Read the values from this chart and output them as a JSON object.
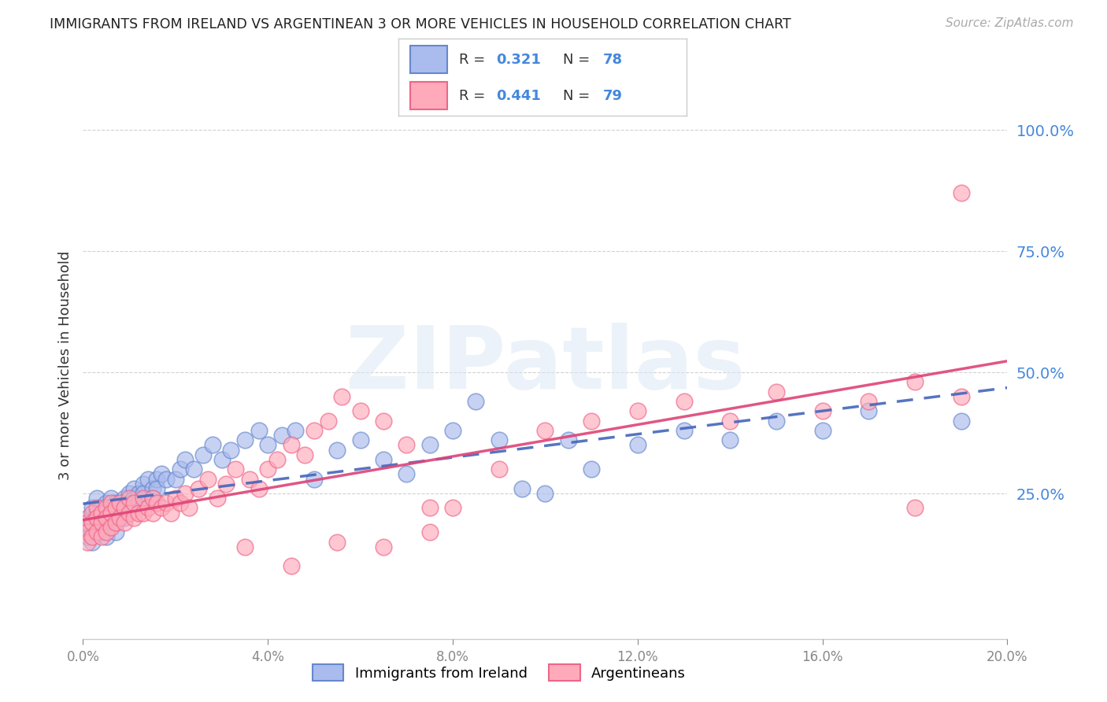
{
  "title": "IMMIGRANTS FROM IRELAND VS ARGENTINEAN 3 OR MORE VEHICLES IN HOUSEHOLD CORRELATION CHART",
  "source": "Source: ZipAtlas.com",
  "ylabel": "3 or more Vehicles in Household",
  "xlim": [
    0.0,
    0.2
  ],
  "ylim": [
    -0.05,
    1.08
  ],
  "blue_scatter_color": "#aabbee",
  "pink_scatter_color": "#ffaabb",
  "blue_edge_color": "#6688cc",
  "pink_edge_color": "#ee6688",
  "blue_line_color": "#4466bb",
  "pink_line_color": "#dd4477",
  "ytick_label_color": "#4488dd",
  "xtick_label_color": "#888888",
  "legend_entries": [
    {
      "label": "Immigrants from Ireland",
      "R": "0.321",
      "N": "78"
    },
    {
      "label": "Argentineans",
      "R": "0.441",
      "N": "79"
    }
  ],
  "watermark_text": "ZIPatlas",
  "ireland_x": [
    0.001,
    0.001,
    0.001,
    0.002,
    0.002,
    0.002,
    0.002,
    0.003,
    0.003,
    0.003,
    0.003,
    0.004,
    0.004,
    0.004,
    0.005,
    0.005,
    0.005,
    0.005,
    0.006,
    0.006,
    0.006,
    0.007,
    0.007,
    0.007,
    0.007,
    0.008,
    0.008,
    0.009,
    0.009,
    0.009,
    0.01,
    0.01,
    0.011,
    0.011,
    0.012,
    0.012,
    0.013,
    0.013,
    0.014,
    0.015,
    0.015,
    0.016,
    0.016,
    0.017,
    0.018,
    0.02,
    0.021,
    0.022,
    0.024,
    0.026,
    0.028,
    0.03,
    0.032,
    0.035,
    0.038,
    0.04,
    0.043,
    0.046,
    0.05,
    0.055,
    0.06,
    0.065,
    0.07,
    0.075,
    0.08,
    0.09,
    0.1,
    0.11,
    0.12,
    0.13,
    0.14,
    0.15,
    0.16,
    0.17,
    0.19,
    0.085,
    0.095,
    0.105
  ],
  "ireland_y": [
    0.2,
    0.18,
    0.16,
    0.22,
    0.19,
    0.17,
    0.15,
    0.21,
    0.24,
    0.2,
    0.18,
    0.22,
    0.2,
    0.17,
    0.23,
    0.21,
    0.19,
    0.16,
    0.24,
    0.22,
    0.2,
    0.23,
    0.21,
    0.19,
    0.17,
    0.22,
    0.2,
    0.24,
    0.22,
    0.2,
    0.25,
    0.23,
    0.26,
    0.24,
    0.25,
    0.23,
    0.27,
    0.25,
    0.28,
    0.26,
    0.24,
    0.28,
    0.26,
    0.29,
    0.28,
    0.28,
    0.3,
    0.32,
    0.3,
    0.33,
    0.35,
    0.32,
    0.34,
    0.36,
    0.38,
    0.35,
    0.37,
    0.38,
    0.28,
    0.34,
    0.36,
    0.32,
    0.29,
    0.35,
    0.38,
    0.36,
    0.25,
    0.3,
    0.35,
    0.38,
    0.36,
    0.4,
    0.38,
    0.42,
    0.4,
    0.44,
    0.26,
    0.36
  ],
  "argentina_x": [
    0.001,
    0.001,
    0.001,
    0.002,
    0.002,
    0.002,
    0.003,
    0.003,
    0.003,
    0.004,
    0.004,
    0.004,
    0.005,
    0.005,
    0.005,
    0.006,
    0.006,
    0.006,
    0.007,
    0.007,
    0.008,
    0.008,
    0.009,
    0.009,
    0.01,
    0.01,
    0.011,
    0.011,
    0.012,
    0.013,
    0.013,
    0.014,
    0.015,
    0.015,
    0.016,
    0.017,
    0.018,
    0.019,
    0.02,
    0.021,
    0.022,
    0.023,
    0.025,
    0.027,
    0.029,
    0.031,
    0.033,
    0.036,
    0.038,
    0.04,
    0.042,
    0.045,
    0.048,
    0.05,
    0.053,
    0.056,
    0.06,
    0.065,
    0.07,
    0.075,
    0.08,
    0.09,
    0.1,
    0.11,
    0.12,
    0.13,
    0.14,
    0.15,
    0.16,
    0.17,
    0.18,
    0.19,
    0.035,
    0.045,
    0.055,
    0.065,
    0.075,
    0.18,
    0.19
  ],
  "argentina_y": [
    0.19,
    0.17,
    0.15,
    0.21,
    0.19,
    0.16,
    0.22,
    0.2,
    0.17,
    0.21,
    0.19,
    0.16,
    0.22,
    0.2,
    0.17,
    0.23,
    0.21,
    0.18,
    0.22,
    0.19,
    0.23,
    0.2,
    0.22,
    0.19,
    0.24,
    0.21,
    0.23,
    0.2,
    0.21,
    0.24,
    0.21,
    0.22,
    0.24,
    0.21,
    0.23,
    0.22,
    0.23,
    0.21,
    0.24,
    0.23,
    0.25,
    0.22,
    0.26,
    0.28,
    0.24,
    0.27,
    0.3,
    0.28,
    0.26,
    0.3,
    0.32,
    0.35,
    0.33,
    0.38,
    0.4,
    0.45,
    0.42,
    0.4,
    0.35,
    0.22,
    0.22,
    0.3,
    0.38,
    0.4,
    0.42,
    0.44,
    0.4,
    0.46,
    0.42,
    0.44,
    0.48,
    0.45,
    0.14,
    0.1,
    0.15,
    0.14,
    0.17,
    0.22,
    0.87
  ]
}
